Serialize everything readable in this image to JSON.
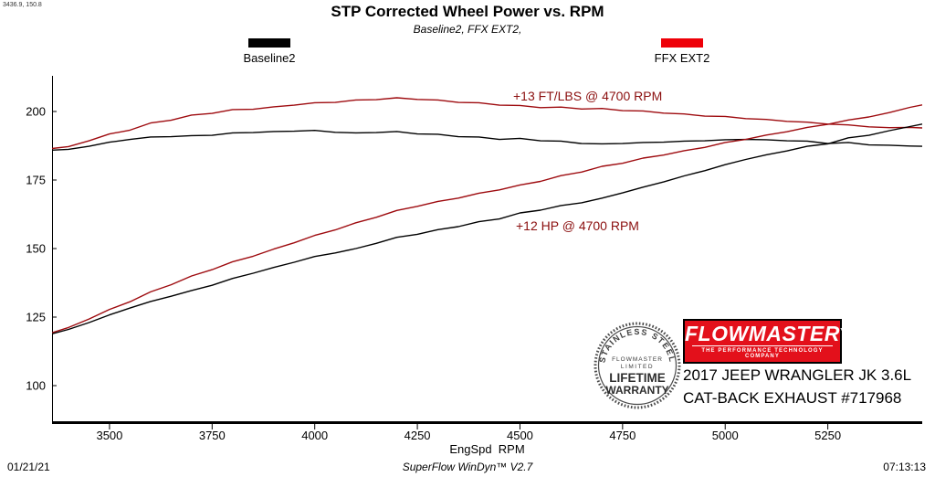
{
  "header": {
    "cursor_readout": "3436.9, 150.8",
    "title": "STP Corrected Wheel Power vs. RPM",
    "subtitle": "Baseline2, FFX EXT2,"
  },
  "legend": [
    {
      "label": "Baseline2",
      "color": "#000000"
    },
    {
      "label": "FFX EXT2",
      "color": "#ee0008"
    }
  ],
  "annotations": [
    {
      "text": "+13 FT/LBS @ 4700 RPM"
    },
    {
      "text": "+12 HP @ 4700 RPM"
    }
  ],
  "overlay": {
    "badge": {
      "arc_text": "STAINLESS STEEL",
      "sub1": "FLOWMASTER",
      "sub2": "LIMITED",
      "main1": "LIFETIME",
      "main2": "WARRANTY"
    },
    "logo": {
      "name": "FLOWMASTER",
      "tm": "™",
      "tagline": "THE PERFORMANCE TECHNOLOGY COMPANY"
    },
    "vehicle_line1": "2017 JEEP WRANGLER JK 3.6L",
    "vehicle_line2": "CAT-BACK EXHAUST #717968"
  },
  "footer": {
    "date": "01/21/21",
    "app": "SuperFlow WinDyn™ V2.7",
    "time": "07:13:13"
  },
  "chart_data": {
    "type": "line",
    "title": "STP Corrected Wheel Power vs. RPM",
    "subtitle": "Baseline2, FFX EXT2,",
    "xlabel": "EngSpd  RPM",
    "ylabel": "",
    "xlim": [
      3360,
      5480
    ],
    "ylim": [
      86,
      213
    ],
    "x_ticks": [
      3500,
      3750,
      4000,
      4250,
      4500,
      4750,
      5000,
      5250
    ],
    "y_ticks": [
      100,
      125,
      150,
      175,
      200
    ],
    "grid": false,
    "legend_position": "top",
    "x": [
      3360,
      3400,
      3450,
      3500,
      3550,
      3600,
      3650,
      3700,
      3750,
      3800,
      3850,
      3900,
      3950,
      4000,
      4050,
      4100,
      4150,
      4200,
      4250,
      4300,
      4350,
      4400,
      4450,
      4500,
      4550,
      4600,
      4650,
      4700,
      4750,
      4800,
      4850,
      4900,
      4950,
      5000,
      5050,
      5100,
      5150,
      5200,
      5250,
      5300,
      5350,
      5400,
      5450,
      5480
    ],
    "series": [
      {
        "name": "FFX EXT2 torque (ft-lbs)",
        "color": "#9e0b0f",
        "values": [
          186.5,
          187.2,
          189.3,
          191.8,
          193.2,
          195.8,
          196.8,
          198.7,
          199.3,
          200.7,
          200.8,
          201.7,
          202.3,
          203.2,
          203.3,
          204.2,
          204.3,
          205.0,
          204.4,
          204.2,
          203.3,
          203.2,
          202.3,
          202.2,
          201.4,
          201.6,
          200.9,
          201.1,
          200.3,
          200.2,
          199.4,
          199.1,
          198.3,
          198.2,
          197.4,
          197.1,
          196.4,
          196.1,
          195.4,
          195.1,
          194.4,
          194.1,
          194.2,
          194.0
        ]
      },
      {
        "name": "Baseline2 torque (ft-lbs)",
        "color": "#000000",
        "values": [
          185.9,
          186.2,
          187.3,
          188.8,
          189.8,
          190.7,
          190.8,
          191.2,
          191.3,
          192.2,
          192.3,
          192.7,
          192.8,
          193.1,
          192.4,
          192.2,
          192.3,
          192.7,
          191.8,
          191.7,
          190.8,
          190.7,
          189.8,
          190.2,
          189.3,
          189.2,
          188.3,
          188.2,
          188.3,
          188.7,
          188.8,
          189.2,
          189.3,
          189.7,
          189.8,
          189.7,
          189.3,
          189.2,
          188.3,
          188.7,
          187.8,
          187.7,
          187.4,
          187.3
        ]
      },
      {
        "name": "FFX EXT2 power (HP)",
        "color": "#9e0b0f",
        "values": [
          119.3,
          121.2,
          124.3,
          127.8,
          130.6,
          134.2,
          136.8,
          140.0,
          142.3,
          145.2,
          147.2,
          149.8,
          152.1,
          154.8,
          156.8,
          159.4,
          161.4,
          163.9,
          165.4,
          167.2,
          168.4,
          170.2,
          171.4,
          173.2,
          174.5,
          176.6,
          177.9,
          180.0,
          181.1,
          183.0,
          184.1,
          185.7,
          186.9,
          188.7,
          189.8,
          191.4,
          192.6,
          194.2,
          195.3,
          196.9,
          198.0,
          199.6,
          201.5,
          202.4
        ]
      },
      {
        "name": "Baseline2 power (HP)",
        "color": "#000000",
        "values": [
          118.9,
          120.5,
          123.0,
          125.8,
          128.3,
          130.7,
          132.6,
          134.7,
          136.6,
          139.1,
          141.0,
          143.1,
          145.0,
          147.1,
          148.4,
          150.0,
          151.9,
          154.1,
          155.2,
          156.9,
          158.0,
          159.8,
          160.8,
          163.0,
          164.0,
          165.7,
          166.7,
          168.4,
          170.3,
          172.4,
          174.3,
          176.5,
          178.4,
          180.6,
          182.5,
          184.2,
          185.6,
          187.3,
          188.2,
          190.4,
          191.3,
          193.0,
          194.5,
          195.4
        ]
      }
    ]
  }
}
